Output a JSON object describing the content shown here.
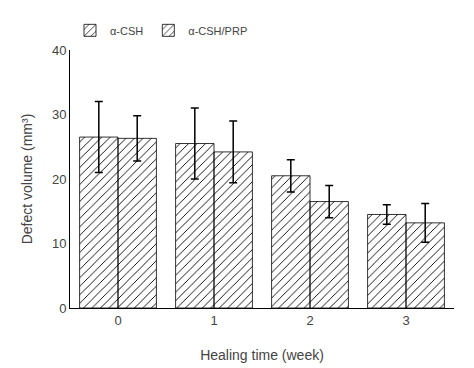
{
  "chart_data": {
    "type": "bar",
    "xlabel": "Healing time (week)",
    "ylabel": "Defect volume (mm³)",
    "categories": [
      "0",
      "1",
      "2",
      "3"
    ],
    "series": [
      {
        "name": "α-CSH",
        "color": "#ee1111",
        "values": [
          26.5,
          25.5,
          20.5,
          14.5
        ],
        "errors": [
          5.5,
          5.5,
          2.5,
          1.5
        ]
      },
      {
        "name": "α-CSH/PRP",
        "color": "#22cc22",
        "values": [
          26.3,
          24.2,
          16.5,
          13.2
        ],
        "errors": [
          3.5,
          4.8,
          2.5,
          3.0
        ]
      }
    ],
    "ylim": [
      0,
      40
    ],
    "yticks": [
      0,
      10,
      20,
      30,
      40
    ],
    "legend": "upper left",
    "grid": false
  }
}
